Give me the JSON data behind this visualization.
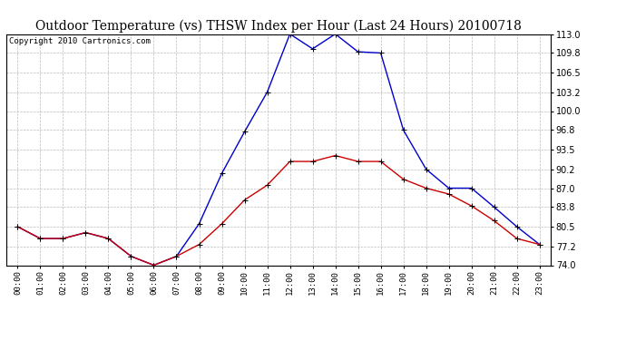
{
  "title": "Outdoor Temperature (vs) THSW Index per Hour (Last 24 Hours) 20100718",
  "copyright": "Copyright 2010 Cartronics.com",
  "hours": [
    "00:00",
    "01:00",
    "02:00",
    "03:00",
    "04:00",
    "05:00",
    "06:00",
    "07:00",
    "08:00",
    "09:00",
    "10:00",
    "11:00",
    "12:00",
    "13:00",
    "14:00",
    "15:00",
    "16:00",
    "17:00",
    "18:00",
    "19:00",
    "20:00",
    "21:00",
    "22:00",
    "23:00"
  ],
  "temp_red": [
    80.5,
    78.5,
    78.5,
    79.5,
    78.5,
    75.5,
    74.0,
    75.5,
    77.5,
    81.0,
    85.0,
    87.5,
    91.5,
    91.5,
    92.5,
    91.5,
    91.5,
    88.5,
    87.0,
    86.0,
    84.0,
    81.5,
    78.5,
    77.5
  ],
  "thsw_blue": [
    80.5,
    78.5,
    78.5,
    79.5,
    78.5,
    75.5,
    74.0,
    75.5,
    81.0,
    89.5,
    96.5,
    103.2,
    113.0,
    110.5,
    113.0,
    110.0,
    109.8,
    96.8,
    90.2,
    87.0,
    87.0,
    83.8,
    80.5,
    77.5
  ],
  "ylim": [
    74.0,
    113.0
  ],
  "yticks": [
    74.0,
    77.2,
    80.5,
    83.8,
    87.0,
    90.2,
    93.5,
    96.8,
    100.0,
    103.2,
    106.5,
    109.8,
    113.0
  ],
  "bg_color": "#ffffff",
  "grid_color": "#bbbbbb",
  "title_fontsize": 10,
  "copyright_fontsize": 6.5,
  "line_red_color": "#cc0000",
  "line_blue_color": "#0000cc",
  "marker": "+"
}
